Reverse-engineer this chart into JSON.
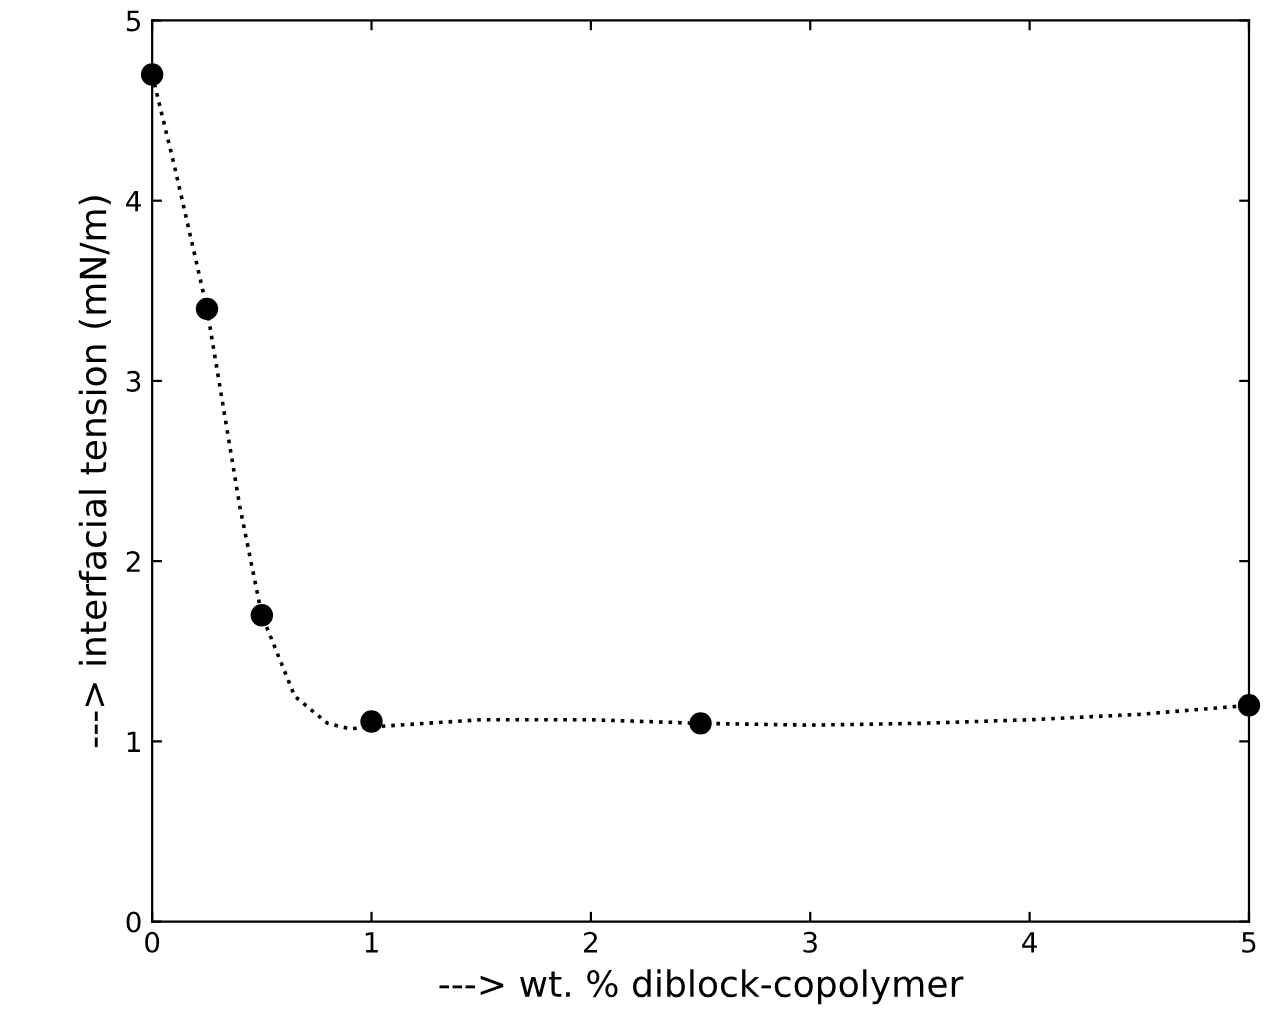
{
  "chart_data": {
    "type": "scatter",
    "xlabel": "---> wt. % diblock-copolymer",
    "ylabel": "---> interfacial tension (mN/m)",
    "series": [
      {
        "color": "#000000",
        "marker": "circle",
        "x": [
          0,
          0.25,
          0.5,
          1,
          2.5,
          5
        ],
        "values": [
          4.7,
          3.4,
          1.7,
          1.11,
          1.1,
          1.2
        ]
      },
      {
        "type": "line",
        "color": "#000000",
        "marker": "none",
        "line_style": "dotted",
        "x": [
          0,
          0.1,
          0.25,
          0.4,
          0.5,
          0.65,
          0.8,
          0.9,
          1,
          1.25,
          1.5,
          2,
          2.5,
          3,
          3.5,
          4,
          4.5,
          5
        ],
        "values": [
          4.7,
          4.2,
          3.4,
          2.3,
          1.7,
          1.25,
          1.1,
          1.07,
          1.08,
          1.1,
          1.12,
          1.12,
          1.1,
          1.09,
          1.1,
          1.12,
          1.15,
          1.2
        ]
      }
    ],
    "xlim": [
      0,
      5
    ],
    "ylim": [
      0,
      5
    ],
    "xticks": [
      0,
      1,
      2,
      3,
      4,
      5
    ],
    "yticks": [
      0,
      1,
      2,
      3,
      4,
      5
    ],
    "grid": false
  }
}
